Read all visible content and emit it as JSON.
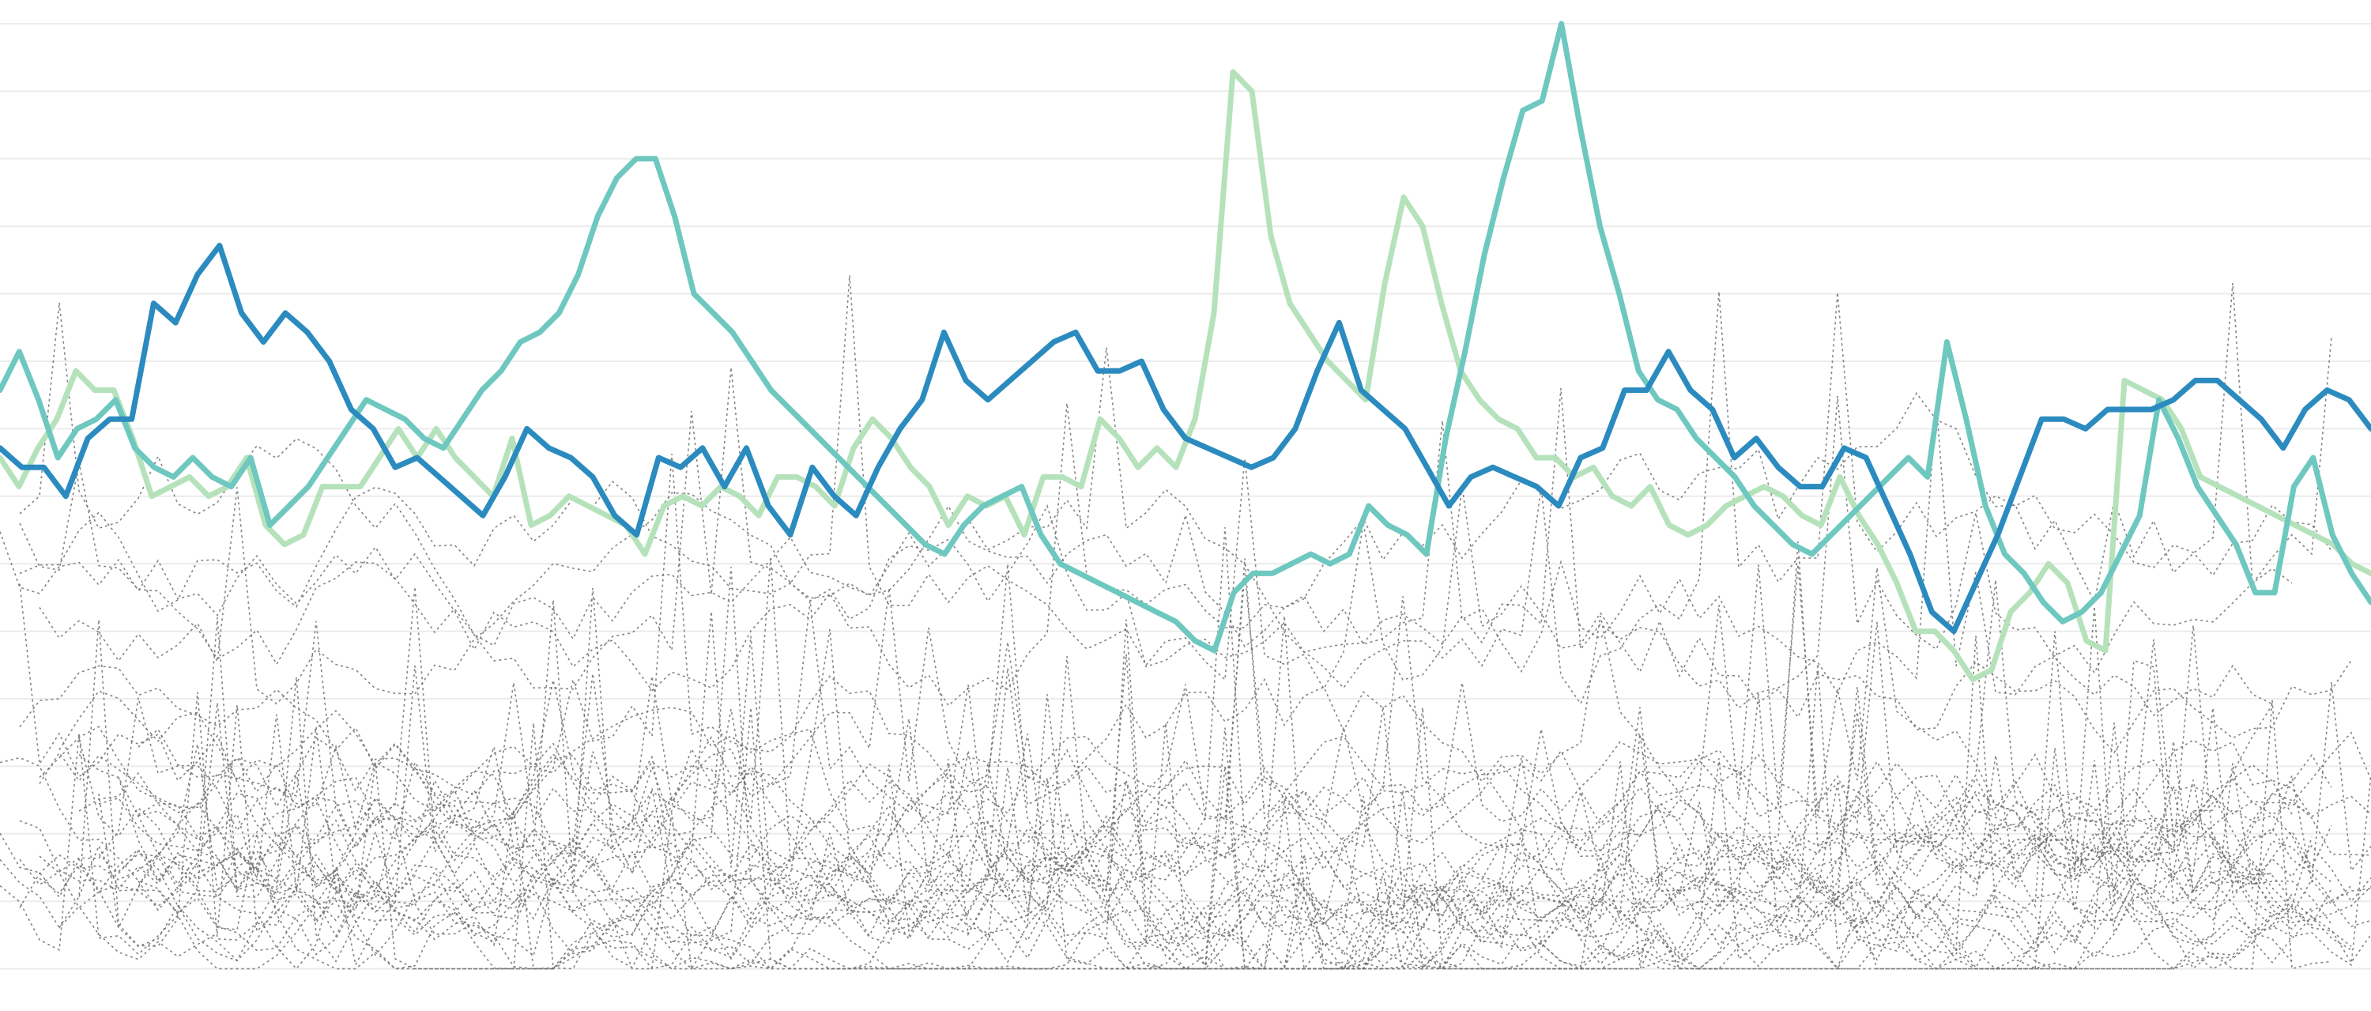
{
  "chart_data": {
    "type": "line",
    "title": "",
    "xlabel": "",
    "ylabel": "",
    "grid": true,
    "x_range": [
      0,
      120
    ],
    "ylim": [
      0,
      100
    ],
    "gridlines_y": [
      2,
      9,
      16,
      23,
      30,
      37,
      44,
      51,
      58,
      65,
      72,
      79,
      86,
      93,
      100
    ],
    "colors": {
      "highlight_light_green": "#b5e2bb",
      "highlight_teal": "#6ec8c0",
      "highlight_blue": "#2b8bbf",
      "background": "#6f6f6f",
      "grid": "#ececec"
    },
    "background_series_note": "",
    "highlight_series": [
      {
        "color": "#b5e2bb",
        "values": [
          55,
          52,
          56,
          59,
          64,
          62,
          62,
          57,
          51,
          52,
          53,
          51,
          52,
          55,
          48,
          46,
          47,
          52,
          52,
          52,
          55,
          58,
          55,
          58,
          55,
          53,
          51,
          57,
          48,
          49,
          51,
          50,
          49,
          48,
          45,
          50,
          51,
          50,
          52,
          51,
          49,
          53,
          53,
          52,
          50,
          56,
          59,
          57,
          54,
          52,
          48,
          51,
          50,
          51,
          47,
          53,
          53,
          52,
          59,
          57,
          54,
          56,
          54,
          59,
          70,
          95,
          93,
          78,
          71,
          68,
          65,
          63,
          61,
          73,
          82,
          79,
          71,
          64,
          61,
          59,
          58,
          55,
          55,
          53,
          54,
          51,
          50,
          52,
          48,
          47,
          48,
          50,
          51,
          52,
          51,
          49,
          48,
          53,
          49,
          46,
          42,
          37,
          37,
          35,
          32,
          33,
          39,
          41,
          44,
          42,
          36,
          35,
          63,
          62,
          61,
          58,
          53,
          52,
          51,
          50,
          49,
          48,
          47,
          46,
          44,
          43
        ]
      },
      {
        "color": "#6ec8c0",
        "values": [
          62,
          66,
          61,
          55,
          58,
          59,
          61,
          56,
          54,
          53,
          55,
          53,
          52,
          55,
          48,
          50,
          52,
          55,
          58,
          61,
          60,
          59,
          57,
          56,
          59,
          62,
          64,
          67,
          68,
          70,
          74,
          80,
          84,
          86,
          86,
          80,
          72,
          70,
          68,
          65,
          62,
          60,
          58,
          56,
          54,
          52,
          50,
          48,
          46,
          45,
          48,
          50,
          51,
          52,
          47,
          44,
          43,
          42,
          41,
          40,
          39,
          38,
          36,
          35,
          41,
          43,
          43,
          44,
          45,
          44,
          45,
          50,
          48,
          47,
          45,
          57,
          66,
          76,
          84,
          91,
          92,
          100,
          89,
          79,
          72,
          64,
          61,
          60,
          57,
          55,
          53,
          50,
          48,
          46,
          45,
          47,
          49,
          51,
          53,
          55,
          53,
          67,
          59,
          50,
          45,
          43,
          40,
          38,
          39,
          41,
          45,
          49,
          61,
          57,
          52,
          49,
          46,
          41,
          41,
          52,
          55,
          47,
          43,
          40
        ]
      },
      {
        "color": "#2b8bbf",
        "values": [
          56,
          54,
          54,
          51,
          57,
          59,
          59,
          71,
          69,
          74,
          77,
          70,
          67,
          70,
          68,
          65,
          60,
          58,
          54,
          55,
          53,
          51,
          49,
          53,
          58,
          56,
          55,
          53,
          49,
          47,
          55,
          54,
          56,
          52,
          56,
          50,
          47,
          54,
          51,
          49,
          54,
          58,
          61,
          68,
          63,
          61,
          63,
          65,
          67,
          68,
          64,
          64,
          65,
          60,
          57,
          56,
          55,
          54,
          55,
          58,
          64,
          69,
          62,
          60,
          58,
          54,
          50,
          53,
          54,
          53,
          52,
          50,
          55,
          56,
          62,
          62,
          66,
          62,
          60,
          55,
          57,
          54,
          52,
          52,
          56,
          55,
          50,
          45,
          39,
          37,
          42,
          47,
          53,
          59,
          59,
          58,
          60,
          60,
          60,
          61,
          63,
          63,
          61,
          59,
          56,
          60,
          62,
          61,
          58
        ]
      }
    ]
  }
}
